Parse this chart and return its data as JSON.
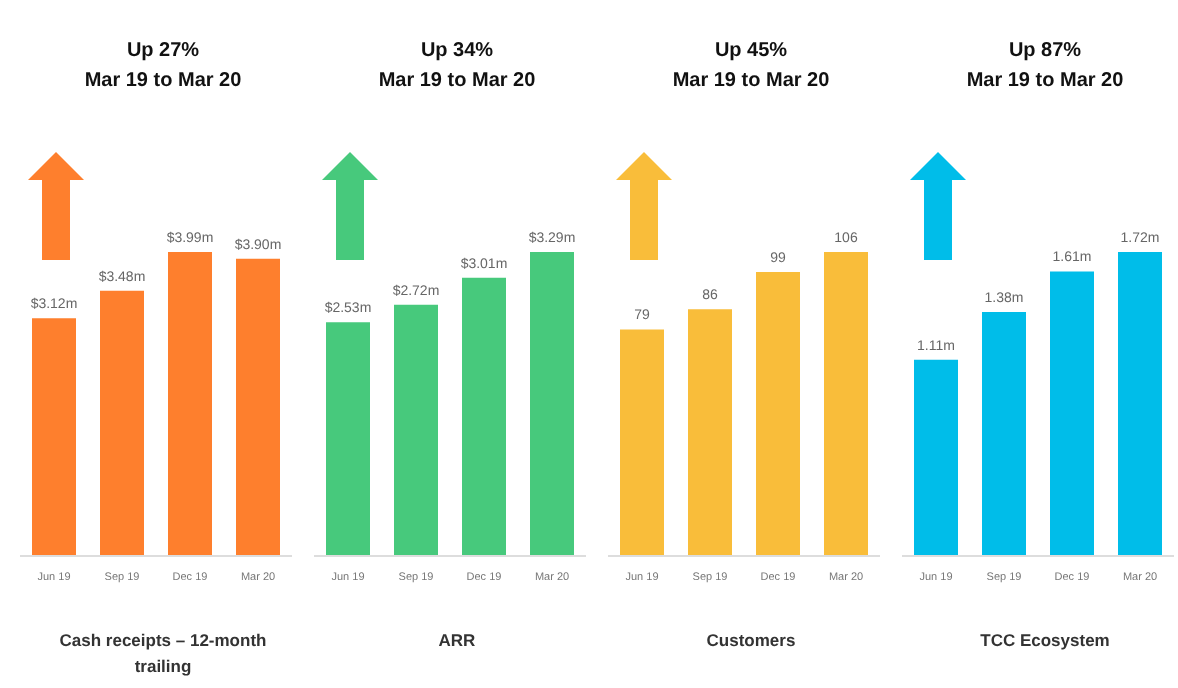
{
  "chart_data": [
    {
      "type": "bar",
      "title": "Up 27%",
      "subtitle": "Mar 19 to Mar 20",
      "xlabel": "Cash receipts – 12-month trailing",
      "categories": [
        "Jun 19",
        "Sep 19",
        "Dec 19",
        "Mar 20"
      ],
      "values": [
        3.12,
        3.48,
        3.99,
        3.9
      ],
      "value_labels": [
        "$3.12m",
        "$3.48m",
        "$3.99m",
        "$3.90m"
      ],
      "color": "#fe7f2d"
    },
    {
      "type": "bar",
      "title": "Up 34%",
      "subtitle": "Mar 19 to Mar 20",
      "xlabel": "ARR",
      "categories": [
        "Jun 19",
        "Sep 19",
        "Dec 19",
        "Mar 20"
      ],
      "values": [
        2.53,
        2.72,
        3.01,
        3.29
      ],
      "value_labels": [
        "$2.53m",
        "$2.72m",
        "$3.01m",
        "$3.29m"
      ],
      "color": "#47c97c"
    },
    {
      "type": "bar",
      "title": "Up 45%",
      "subtitle": "Mar 19 to Mar 20",
      "xlabel": "Customers",
      "categories": [
        "Jun 19",
        "Sep 19",
        "Dec 19",
        "Mar 20"
      ],
      "values": [
        79,
        86,
        99,
        106
      ],
      "data_labels": true,
      "color": "#f9bd3a"
    },
    {
      "type": "bar",
      "title": "Up 87%",
      "subtitle": "Mar 19 to Mar 20",
      "xlabel": "TCC Ecosystem",
      "categories": [
        "Jun 19",
        "Sep 19",
        "Dec 19",
        "Mar 20"
      ],
      "values": [
        1.11,
        1.38,
        1.61,
        1.72
      ],
      "value_labels": [
        "1.11m",
        "1.38m",
        "1.61m",
        "1.72m"
      ],
      "color": "#00bde9"
    }
  ]
}
